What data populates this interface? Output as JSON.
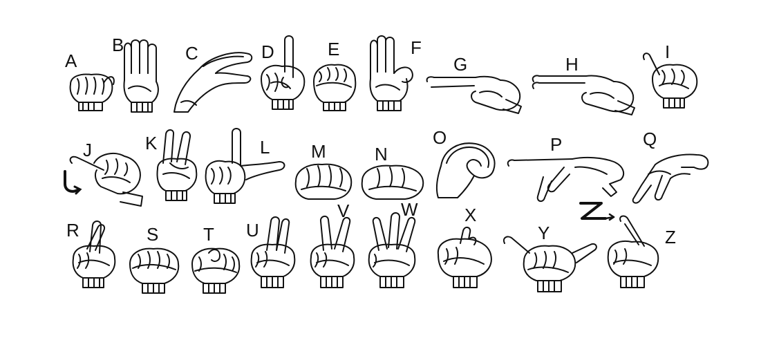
{
  "alphabet": {
    "letters": [
      "A",
      "B",
      "C",
      "D",
      "E",
      "F",
      "G",
      "H",
      "I",
      "J",
      "K",
      "L",
      "M",
      "N",
      "O",
      "P",
      "Q",
      "R",
      "S",
      "T",
      "U",
      "V",
      "W",
      "X",
      "Y",
      "Z"
    ]
  },
  "z_motion_glyph": "Z",
  "colors": {
    "ink": "#111111",
    "background": "#ffffff"
  }
}
